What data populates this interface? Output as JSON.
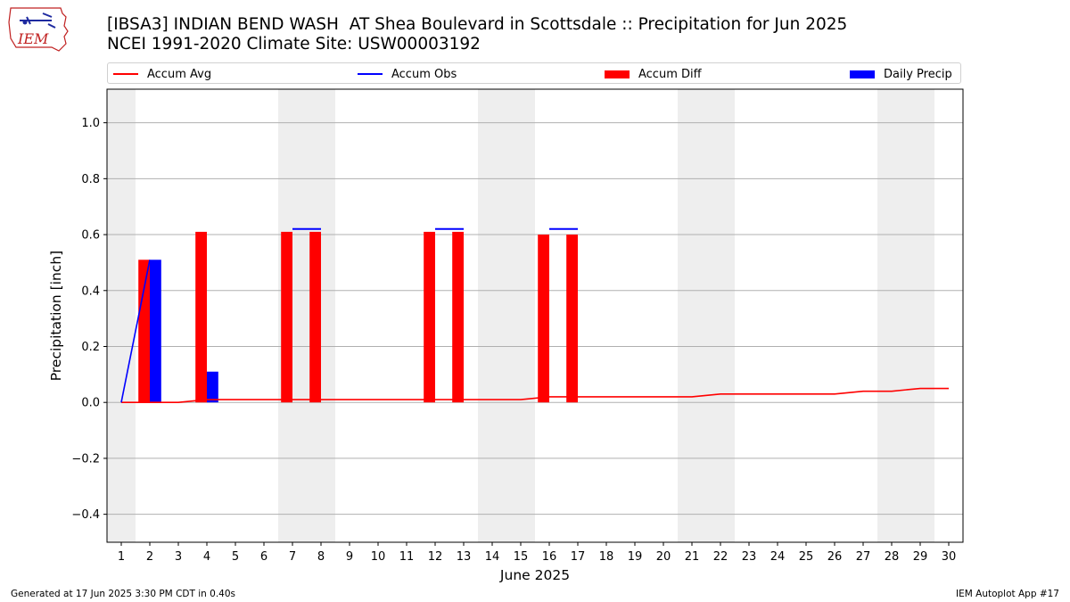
{
  "title_line1": "[IBSA3] INDIAN BEND WASH  AT Shea Boulevard in Scottsdale :: Precipitation for Jun 2025",
  "title_line2": "NCEI 1991-2020 Climate Site: USW00003192",
  "logo_text": "IEM",
  "footer_left": "Generated at 17 Jun 2025 3:30 PM CDT in 0.40s",
  "footer_right": "IEM Autoplot App #17",
  "colors": {
    "avg": "#ff0000",
    "obs": "#0000ff",
    "diff": "#ff0000",
    "daily": "#0000ff",
    "weekend": "#eeeeee",
    "grid": "#b0b0b0"
  },
  "chart_data": {
    "type": "bar",
    "xlabel": "June 2025",
    "ylabel": "Precipitation [inch]",
    "xlim": [
      0.5,
      30.5
    ],
    "ylim": [
      -0.5,
      1.12
    ],
    "yticks": [
      -0.4,
      -0.2,
      0.0,
      0.2,
      0.4,
      0.6,
      0.8,
      1.0
    ],
    "grid": true,
    "legend_position": "top",
    "days": [
      1,
      2,
      3,
      4,
      5,
      6,
      7,
      8,
      9,
      10,
      11,
      12,
      13,
      14,
      15,
      16,
      17,
      18,
      19,
      20,
      21,
      22,
      23,
      24,
      25,
      26,
      27,
      28,
      29,
      30
    ],
    "weekend_bands": [
      [
        0.5,
        1.5
      ],
      [
        6.5,
        8.5
      ],
      [
        13.5,
        15.5
      ],
      [
        20.5,
        22.5
      ],
      [
        27.5,
        29.5
      ]
    ],
    "series": [
      {
        "name": "Accum Avg",
        "kind": "line",
        "values": [
          0.0,
          0.0,
          0.0,
          0.01,
          0.01,
          0.01,
          0.01,
          0.01,
          0.01,
          0.01,
          0.01,
          0.01,
          0.01,
          0.01,
          0.01,
          0.02,
          0.02,
          0.02,
          0.02,
          0.02,
          0.02,
          0.03,
          0.03,
          0.03,
          0.03,
          0.03,
          0.04,
          0.04,
          0.05,
          0.05
        ]
      },
      {
        "name": "Accum Obs",
        "kind": "line",
        "points": [
          [
            1,
            0.0
          ],
          [
            2,
            0.51
          ]
        ],
        "segments": [
          [
            7,
            8,
            0.62
          ],
          [
            12,
            13,
            0.62
          ],
          [
            16,
            17,
            0.62
          ]
        ]
      },
      {
        "name": "Accum Diff",
        "kind": "bar",
        "points": [
          [
            2,
            0.51
          ],
          [
            4,
            0.61
          ],
          [
            7,
            0.61
          ],
          [
            8,
            0.61
          ],
          [
            12,
            0.61
          ],
          [
            13,
            0.61
          ],
          [
            16,
            0.6
          ],
          [
            17,
            0.6
          ]
        ]
      },
      {
        "name": "Daily Precip",
        "kind": "bar",
        "points": [
          [
            2,
            0.51
          ],
          [
            4,
            0.11
          ]
        ]
      }
    ]
  }
}
